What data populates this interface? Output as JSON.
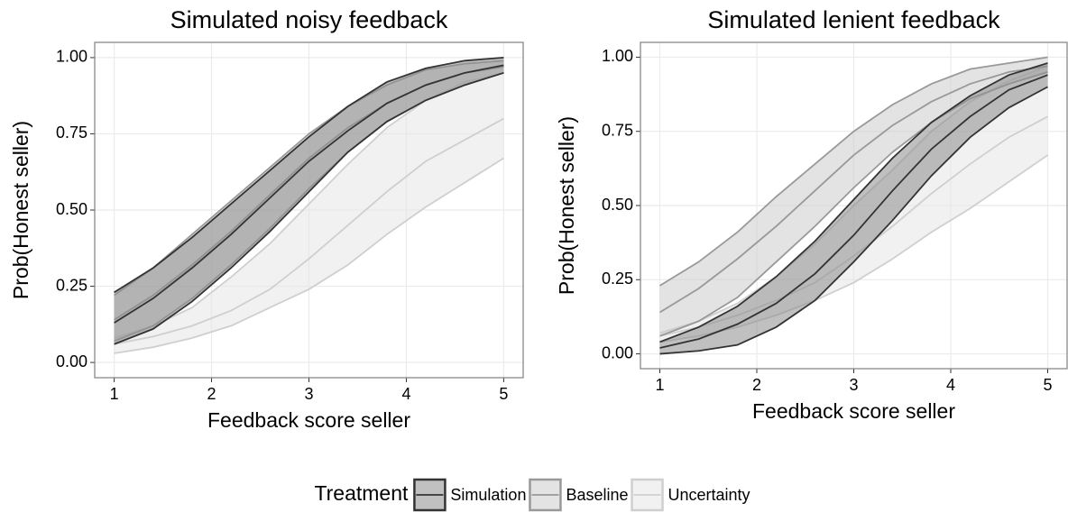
{
  "chart_data": [
    {
      "type": "ribbon",
      "title": "Simulated noisy feedback",
      "xlabel": "Feedback score seller",
      "ylabel": "Prob(Honest seller)",
      "x": [
        1,
        1.4,
        1.8,
        2.2,
        2.6,
        3,
        3.4,
        3.8,
        4.2,
        4.6,
        5
      ],
      "xlim": [
        0.8,
        5.2
      ],
      "xticks": [
        1,
        2,
        3,
        4,
        5
      ],
      "ylim": [
        -0.05,
        1.05
      ],
      "yticks": [
        {
          "value": 0,
          "label": "0.00"
        },
        {
          "value": 0.25,
          "label": "0.25"
        },
        {
          "value": 0.5,
          "label": "0.50"
        },
        {
          "value": 0.75,
          "label": "0.75"
        },
        {
          "value": 1,
          "label": "1.00"
        }
      ],
      "grid": true,
      "series": [
        {
          "name": "Uncertainty",
          "color": "#cfcfcf",
          "fill": "#e6e6e6",
          "values": [
            0.06,
            0.085,
            0.12,
            0.17,
            0.24,
            0.34,
            0.45,
            0.56,
            0.66,
            0.73,
            0.8
          ],
          "lower": [
            0.03,
            0.05,
            0.08,
            0.12,
            0.18,
            0.24,
            0.32,
            0.42,
            0.51,
            0.59,
            0.67
          ],
          "upper": [
            0.08,
            0.12,
            0.18,
            0.28,
            0.39,
            0.52,
            0.65,
            0.77,
            0.86,
            0.92,
            0.95
          ]
        },
        {
          "name": "Baseline",
          "color": "#999999",
          "fill": "#cccccc",
          "values": [
            0.14,
            0.22,
            0.32,
            0.43,
            0.55,
            0.67,
            0.77,
            0.85,
            0.91,
            0.95,
            0.97
          ],
          "lower": [
            0.07,
            0.12,
            0.21,
            0.32,
            0.44,
            0.57,
            0.69,
            0.79,
            0.86,
            0.91,
            0.95
          ],
          "upper": [
            0.22,
            0.31,
            0.42,
            0.53,
            0.64,
            0.75,
            0.84,
            0.91,
            0.96,
            0.98,
            0.99
          ]
        },
        {
          "name": "Simulation",
          "color": "#333333",
          "fill": "#8c8c8c",
          "values": [
            0.13,
            0.21,
            0.31,
            0.42,
            0.54,
            0.66,
            0.76,
            0.85,
            0.91,
            0.95,
            0.975
          ],
          "lower": [
            0.06,
            0.11,
            0.2,
            0.31,
            0.43,
            0.56,
            0.69,
            0.79,
            0.86,
            0.91,
            0.95
          ],
          "upper": [
            0.23,
            0.31,
            0.41,
            0.52,
            0.63,
            0.74,
            0.84,
            0.92,
            0.965,
            0.99,
            1.0
          ]
        }
      ]
    },
    {
      "type": "ribbon",
      "title": "Simulated lenient feedback",
      "xlabel": "Feedback score seller",
      "ylabel": "Prob(Honest seller)",
      "x": [
        1,
        1.4,
        1.8,
        2.2,
        2.6,
        3,
        3.4,
        3.8,
        4.2,
        4.6,
        5
      ],
      "xlim": [
        0.8,
        5.2
      ],
      "xticks": [
        1,
        2,
        3,
        4,
        5
      ],
      "ylim": [
        -0.05,
        1.05
      ],
      "yticks": [
        {
          "value": 0,
          "label": "0.00"
        },
        {
          "value": 0.25,
          "label": "0.25"
        },
        {
          "value": 0.5,
          "label": "0.50"
        },
        {
          "value": 0.75,
          "label": "0.75"
        },
        {
          "value": 1,
          "label": "1.00"
        }
      ],
      "grid": true,
      "series": [
        {
          "color": "#cfcfcf",
          "fill": "#e6e6e6",
          "values": [
            0.06,
            0.09,
            0.13,
            0.18,
            0.24,
            0.33,
            0.43,
            0.54,
            0.64,
            0.73,
            0.8
          ],
          "lower": [
            0.04,
            0.06,
            0.09,
            0.13,
            0.18,
            0.24,
            0.32,
            0.41,
            0.49,
            0.58,
            0.67
          ],
          "upper": [
            0.07,
            0.11,
            0.17,
            0.26,
            0.37,
            0.5,
            0.62,
            0.75,
            0.85,
            0.92,
            0.97
          ]
        },
        {
          "color": "#999999",
          "fill": "#cccccc",
          "values": [
            0.14,
            0.22,
            0.32,
            0.43,
            0.55,
            0.67,
            0.77,
            0.85,
            0.91,
            0.95,
            0.97
          ],
          "lower": [
            0.06,
            0.11,
            0.19,
            0.31,
            0.43,
            0.56,
            0.68,
            0.78,
            0.86,
            0.91,
            0.95
          ],
          "upper": [
            0.23,
            0.31,
            0.41,
            0.53,
            0.64,
            0.75,
            0.84,
            0.91,
            0.96,
            0.98,
            1.0
          ]
        },
        {
          "color": "#333333",
          "fill": "#8c8c8c",
          "values": [
            0.02,
            0.05,
            0.1,
            0.17,
            0.27,
            0.4,
            0.55,
            0.69,
            0.8,
            0.89,
            0.94
          ],
          "lower": [
            0.0,
            0.01,
            0.03,
            0.09,
            0.18,
            0.31,
            0.45,
            0.6,
            0.73,
            0.83,
            0.9
          ],
          "upper": [
            0.04,
            0.09,
            0.16,
            0.26,
            0.38,
            0.52,
            0.66,
            0.78,
            0.87,
            0.94,
            0.98
          ]
        }
      ]
    }
  ],
  "legend": {
    "title": "Treatment"
  }
}
